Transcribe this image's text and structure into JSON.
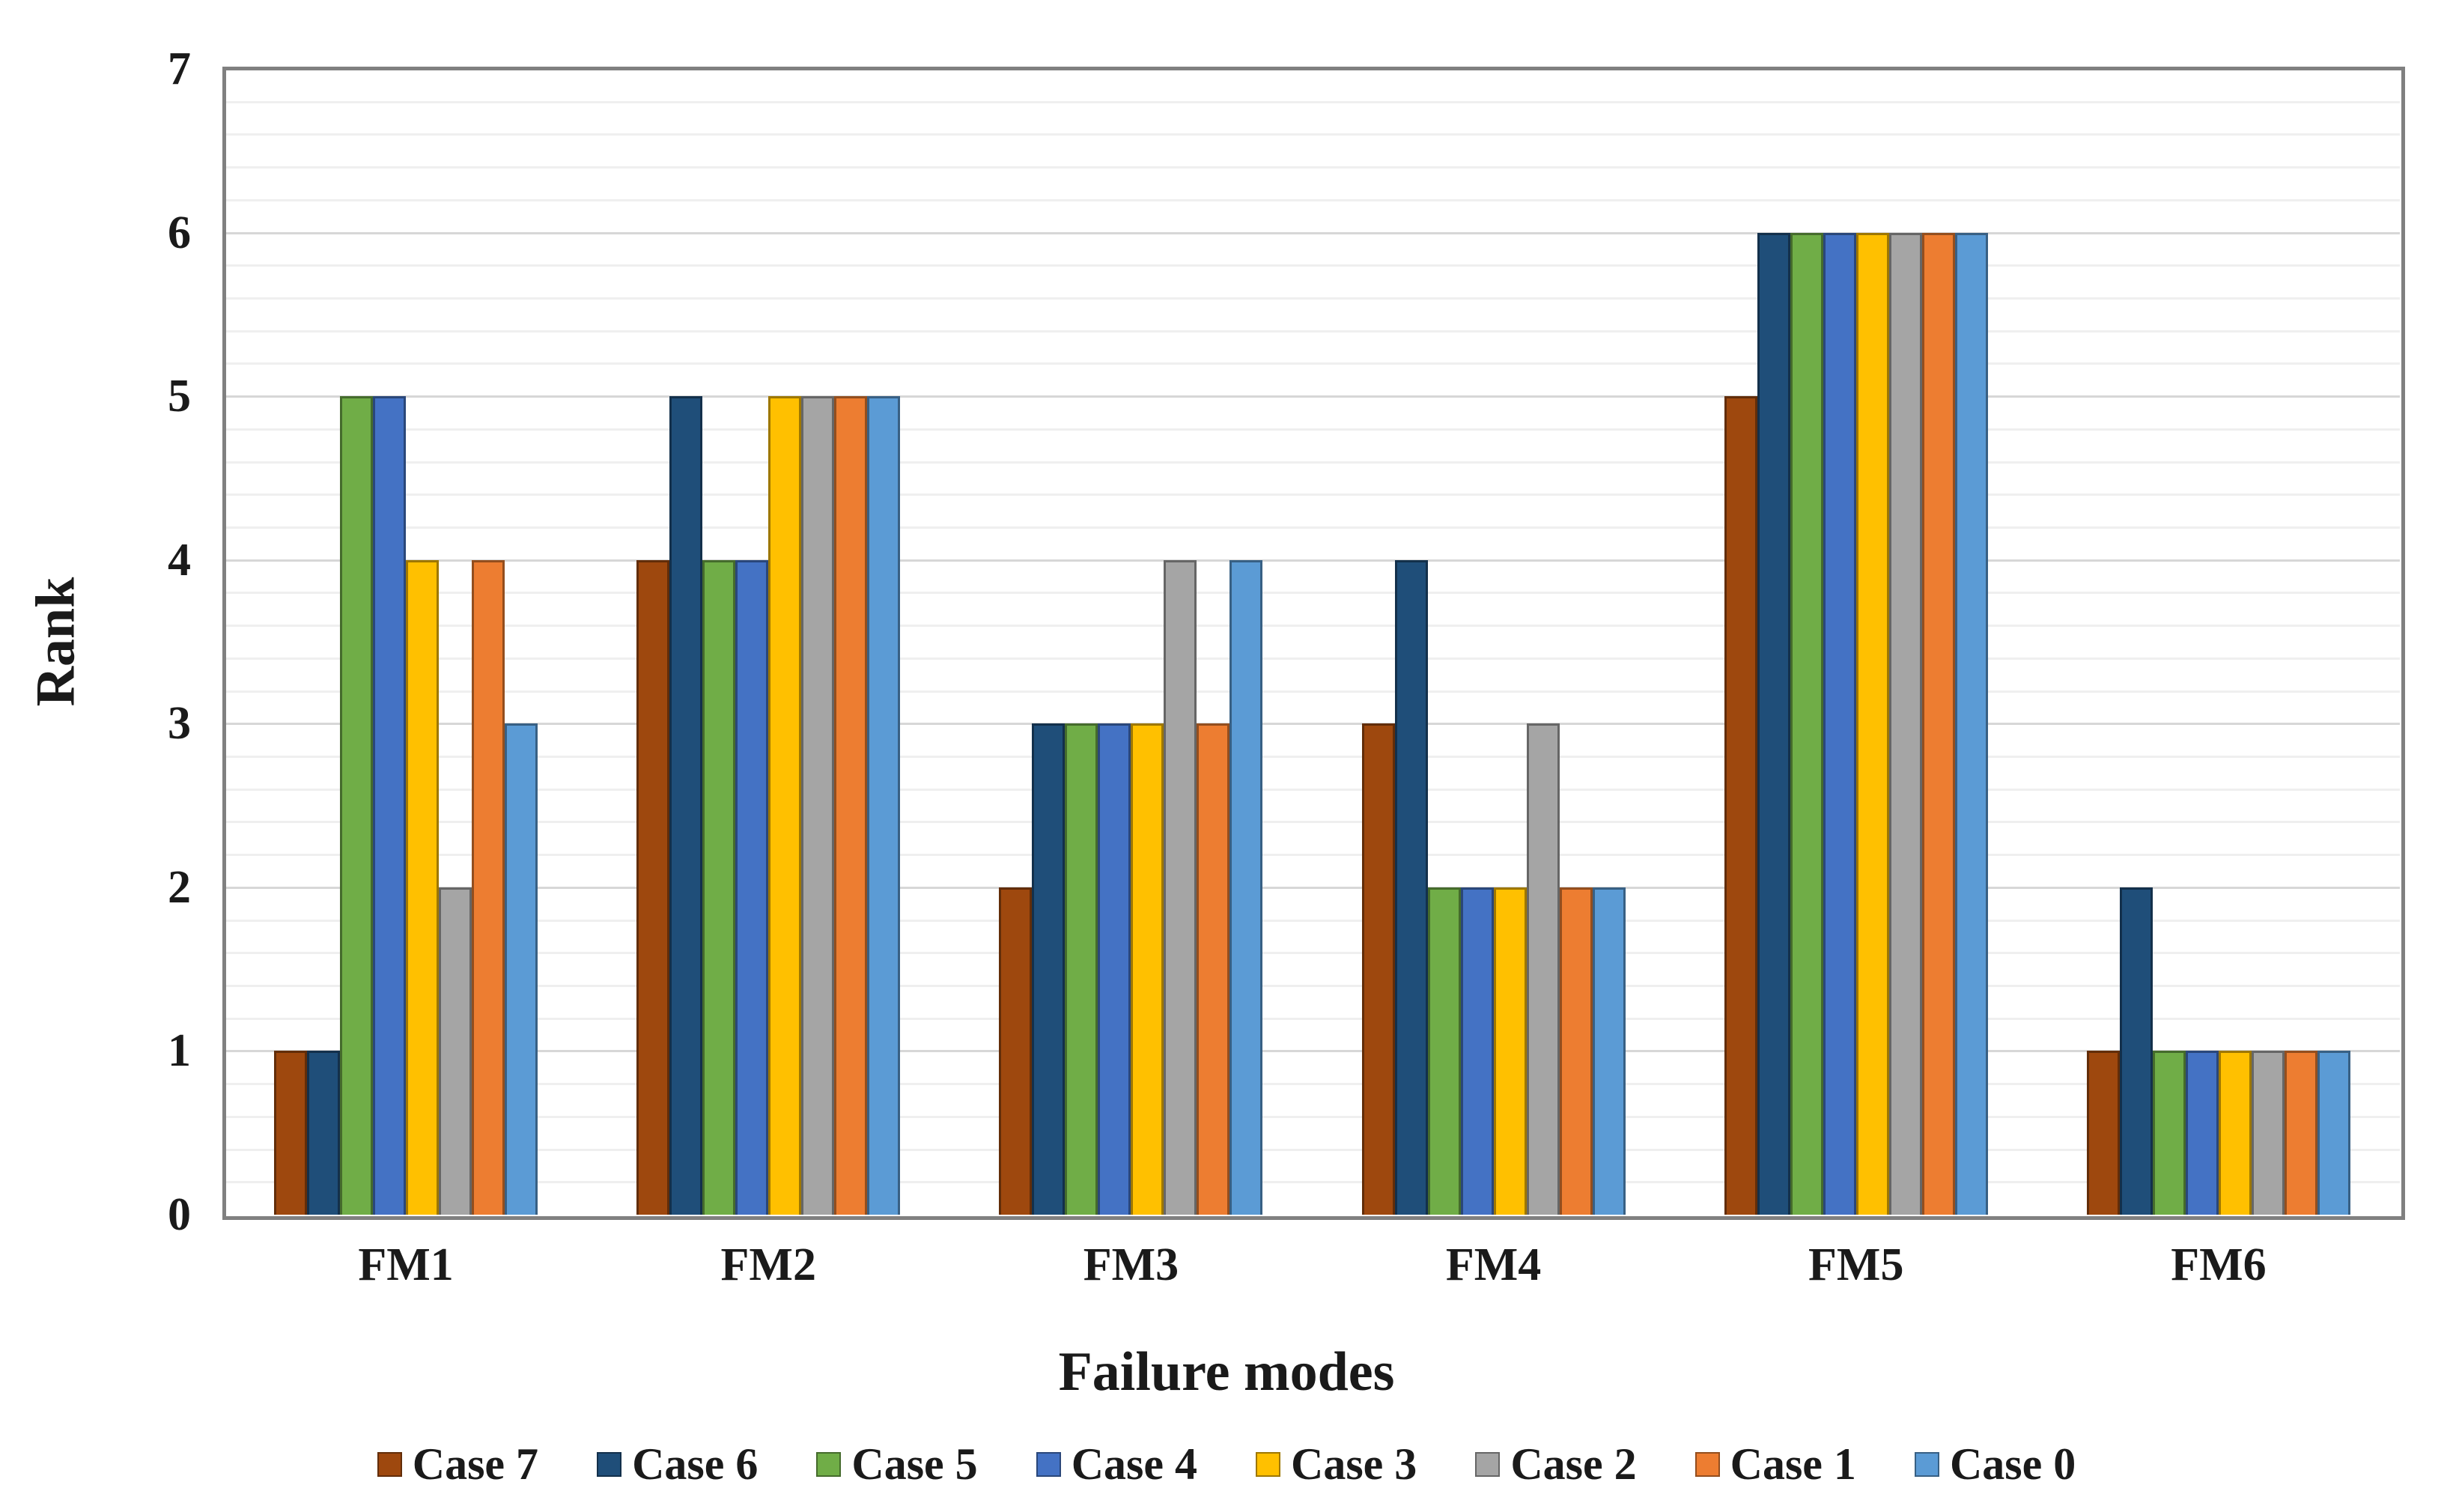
{
  "chart_data": {
    "type": "bar",
    "title": "",
    "xlabel": "Failure modes",
    "ylabel": "Rank",
    "categories": [
      "FM1",
      "FM2",
      "FM3",
      "FM4",
      "FM5",
      "FM6"
    ],
    "series": [
      {
        "name": "Case 7",
        "color": "#9E480E",
        "values": [
          1,
          4,
          2,
          3,
          5,
          1
        ]
      },
      {
        "name": "Case 6",
        "color": "#1F4E79",
        "values": [
          1,
          5,
          3,
          4,
          6,
          2
        ]
      },
      {
        "name": "Case 5",
        "color": "#70AD47",
        "values": [
          5,
          4,
          3,
          2,
          6,
          1
        ]
      },
      {
        "name": "Case 4",
        "color": "#4472C4",
        "values": [
          5,
          4,
          3,
          2,
          6,
          1
        ]
      },
      {
        "name": "Case 3",
        "color": "#FFC000",
        "values": [
          4,
          5,
          3,
          2,
          6,
          1
        ]
      },
      {
        "name": "Case 2",
        "color": "#A5A5A5",
        "values": [
          2,
          5,
          4,
          3,
          6,
          1
        ]
      },
      {
        "name": "Case 1",
        "color": "#ED7D31",
        "values": [
          4,
          5,
          3,
          2,
          6,
          1
        ]
      },
      {
        "name": "Case 0",
        "color": "#5B9BD5",
        "values": [
          3,
          5,
          4,
          2,
          6,
          1
        ]
      }
    ],
    "ylim": [
      0,
      7
    ],
    "y_major_unit": 1,
    "y_minor_unit": 0.2,
    "y_tick_labels": [
      "0",
      "1",
      "2",
      "3",
      "4",
      "5",
      "6",
      "7"
    ],
    "grid": "on",
    "legend_position": "bottom",
    "plot_border_color": "#808080",
    "major_grid_color": "#D7D7D7",
    "minor_grid_color": "#EFEFEF",
    "background_color": "#FFFFFF"
  }
}
